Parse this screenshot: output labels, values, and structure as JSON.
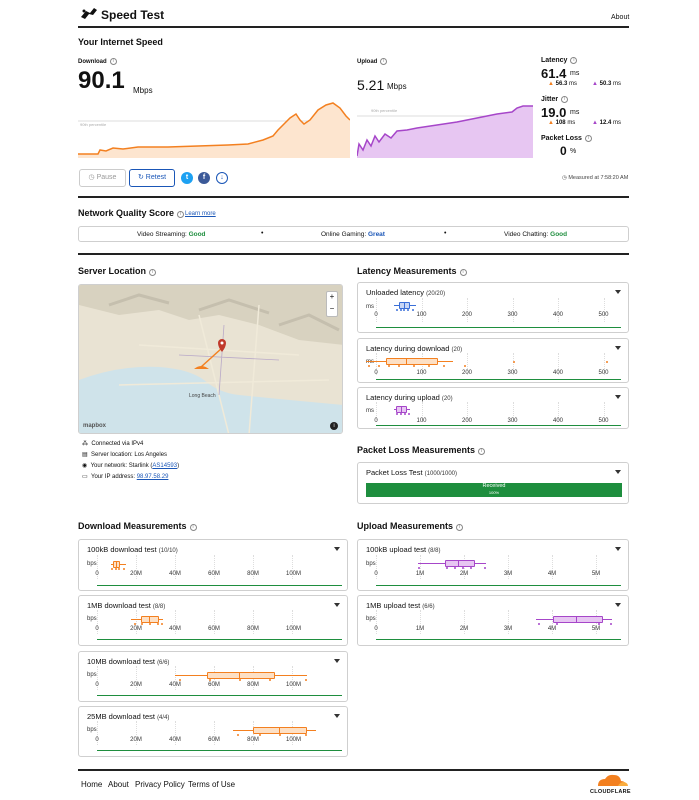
{
  "header": {
    "title": "Speed Test",
    "about": "About"
  },
  "speed": {
    "section_title": "Your Internet Speed",
    "download_label": "Download",
    "download_value": "90.1",
    "download_unit": "Mbps",
    "upload_label": "Upload",
    "upload_value": "5.21",
    "upload_unit": "Mbps",
    "percentile_label": "90th percentile",
    "latency_label": "Latency",
    "latency_value": "61.4",
    "latency_unit": "ms",
    "latency_down": "56.3",
    "latency_up": "50.3",
    "jitter_label": "Jitter",
    "jitter_value": "19.0",
    "jitter_unit": "ms",
    "jitter_down": "108",
    "jitter_up": "12.4",
    "ms": "ms",
    "packet_loss_label": "Packet Loss",
    "packet_loss_value": "0",
    "packet_loss_unit": "%",
    "pause": "Pause",
    "retest": "Retest",
    "measured_at": "Measured at 7:58:20 AM"
  },
  "quality": {
    "title": "Network Quality Score",
    "learn_more": "Learn more",
    "video_streaming_label": "Video Streaming:",
    "video_streaming_value": "Good",
    "online_gaming_label": "Online Gaming:",
    "online_gaming_value": "Great",
    "video_chatting_label": "Video Chatting:",
    "video_chatting_value": "Good",
    "bullet": "•"
  },
  "server": {
    "title": "Server Location",
    "map_city": "Long Beach",
    "mapbox": "mapbox",
    "zoom_in": "+",
    "zoom_out": "−",
    "info_glyph": "i",
    "connected": "Connected via IPv4",
    "location": "Server location: Los Angeles",
    "network_prefix": "Your network: Starlink (",
    "network_asn": "AS14593",
    "network_suffix": ")",
    "ip_prefix": "Your IP address: ",
    "ip_value": "98.97.58.29"
  },
  "latency_measurements": {
    "title": "Latency Measurements",
    "ticks": [
      "0",
      "100",
      "200",
      "300",
      "400",
      "500"
    ],
    "unit": "ms",
    "cards": [
      {
        "name": "Unloaded latency",
        "count": "(20/20)"
      },
      {
        "name": "Latency during download",
        "count": "(20)"
      },
      {
        "name": "Latency during upload",
        "count": "(20)"
      }
    ]
  },
  "packet_loss": {
    "title": "Packet Loss Measurements",
    "card_name": "Packet Loss Test",
    "card_count": "(1000/1000)",
    "bar_label": "Received",
    "bar_value": "100%",
    "received_fraction": 1.0
  },
  "download_measurements": {
    "title": "Download Measurements",
    "ticks": [
      "0",
      "20M",
      "40M",
      "60M",
      "80M",
      "100M"
    ],
    "unit": "bps",
    "cards": [
      {
        "name": "100kB download test",
        "count": "(10/10)"
      },
      {
        "name": "1MB download test",
        "count": "(8/8)"
      },
      {
        "name": "10MB download test",
        "count": "(6/6)"
      },
      {
        "name": "25MB download test",
        "count": "(4/4)"
      }
    ]
  },
  "upload_measurements": {
    "title": "Upload Measurements",
    "ticks": [
      "0",
      "1M",
      "2M",
      "3M",
      "4M",
      "5M"
    ],
    "unit": "bps",
    "cards": [
      {
        "name": "100kB upload test",
        "count": "(8/8)"
      },
      {
        "name": "1MB upload test",
        "count": "(6/6)"
      }
    ]
  },
  "footer": {
    "home": "Home",
    "about": "About",
    "privacy": "Privacy Policy",
    "terms": "Terms of Use",
    "brand": "CLOUDFLARE"
  },
  "colors": {
    "download": "#f38020",
    "upload": "#a646c9",
    "latency_blue": "#3a6fd8",
    "good": "#1e8e3e",
    "link": "#1a56b7"
  },
  "icons": {
    "logo": "speedometer-rabbit-icon",
    "pause": "pause-icon",
    "retest": "refresh-icon",
    "twitter": "twitter-icon",
    "facebook": "facebook-icon",
    "download_share": "download-icon",
    "clock": "clock-icon"
  }
}
